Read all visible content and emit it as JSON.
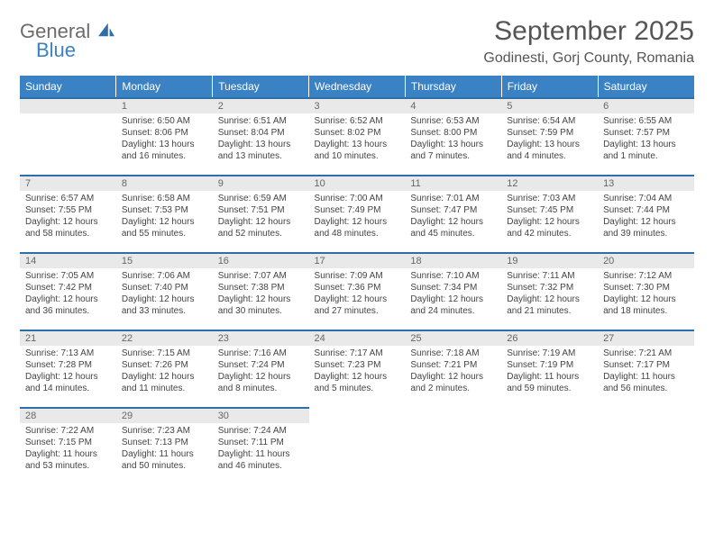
{
  "brand": {
    "general": "General",
    "blue": "Blue"
  },
  "title": "September 2025",
  "location": "Godinesti, Gorj County, Romania",
  "colors": {
    "headerBg": "#3b82c4",
    "headerText": "#ffffff",
    "dayBarBg": "#e9e9e9",
    "dayBarBorder": "#2f6fa8",
    "bodyText": "#444444",
    "titleText": "#555555"
  },
  "dayHeaders": [
    "Sunday",
    "Monday",
    "Tuesday",
    "Wednesday",
    "Thursday",
    "Friday",
    "Saturday"
  ],
  "weeks": [
    [
      {
        "n": "",
        "sr": "",
        "ss": "",
        "dl": ""
      },
      {
        "n": "1",
        "sr": "Sunrise: 6:50 AM",
        "ss": "Sunset: 8:06 PM",
        "dl": "Daylight: 13 hours and 16 minutes."
      },
      {
        "n": "2",
        "sr": "Sunrise: 6:51 AM",
        "ss": "Sunset: 8:04 PM",
        "dl": "Daylight: 13 hours and 13 minutes."
      },
      {
        "n": "3",
        "sr": "Sunrise: 6:52 AM",
        "ss": "Sunset: 8:02 PM",
        "dl": "Daylight: 13 hours and 10 minutes."
      },
      {
        "n": "4",
        "sr": "Sunrise: 6:53 AM",
        "ss": "Sunset: 8:00 PM",
        "dl": "Daylight: 13 hours and 7 minutes."
      },
      {
        "n": "5",
        "sr": "Sunrise: 6:54 AM",
        "ss": "Sunset: 7:59 PM",
        "dl": "Daylight: 13 hours and 4 minutes."
      },
      {
        "n": "6",
        "sr": "Sunrise: 6:55 AM",
        "ss": "Sunset: 7:57 PM",
        "dl": "Daylight: 13 hours and 1 minute."
      }
    ],
    [
      {
        "n": "7",
        "sr": "Sunrise: 6:57 AM",
        "ss": "Sunset: 7:55 PM",
        "dl": "Daylight: 12 hours and 58 minutes."
      },
      {
        "n": "8",
        "sr": "Sunrise: 6:58 AM",
        "ss": "Sunset: 7:53 PM",
        "dl": "Daylight: 12 hours and 55 minutes."
      },
      {
        "n": "9",
        "sr": "Sunrise: 6:59 AM",
        "ss": "Sunset: 7:51 PM",
        "dl": "Daylight: 12 hours and 52 minutes."
      },
      {
        "n": "10",
        "sr": "Sunrise: 7:00 AM",
        "ss": "Sunset: 7:49 PM",
        "dl": "Daylight: 12 hours and 48 minutes."
      },
      {
        "n": "11",
        "sr": "Sunrise: 7:01 AM",
        "ss": "Sunset: 7:47 PM",
        "dl": "Daylight: 12 hours and 45 minutes."
      },
      {
        "n": "12",
        "sr": "Sunrise: 7:03 AM",
        "ss": "Sunset: 7:45 PM",
        "dl": "Daylight: 12 hours and 42 minutes."
      },
      {
        "n": "13",
        "sr": "Sunrise: 7:04 AM",
        "ss": "Sunset: 7:44 PM",
        "dl": "Daylight: 12 hours and 39 minutes."
      }
    ],
    [
      {
        "n": "14",
        "sr": "Sunrise: 7:05 AM",
        "ss": "Sunset: 7:42 PM",
        "dl": "Daylight: 12 hours and 36 minutes."
      },
      {
        "n": "15",
        "sr": "Sunrise: 7:06 AM",
        "ss": "Sunset: 7:40 PM",
        "dl": "Daylight: 12 hours and 33 minutes."
      },
      {
        "n": "16",
        "sr": "Sunrise: 7:07 AM",
        "ss": "Sunset: 7:38 PM",
        "dl": "Daylight: 12 hours and 30 minutes."
      },
      {
        "n": "17",
        "sr": "Sunrise: 7:09 AM",
        "ss": "Sunset: 7:36 PM",
        "dl": "Daylight: 12 hours and 27 minutes."
      },
      {
        "n": "18",
        "sr": "Sunrise: 7:10 AM",
        "ss": "Sunset: 7:34 PM",
        "dl": "Daylight: 12 hours and 24 minutes."
      },
      {
        "n": "19",
        "sr": "Sunrise: 7:11 AM",
        "ss": "Sunset: 7:32 PM",
        "dl": "Daylight: 12 hours and 21 minutes."
      },
      {
        "n": "20",
        "sr": "Sunrise: 7:12 AM",
        "ss": "Sunset: 7:30 PM",
        "dl": "Daylight: 12 hours and 18 minutes."
      }
    ],
    [
      {
        "n": "21",
        "sr": "Sunrise: 7:13 AM",
        "ss": "Sunset: 7:28 PM",
        "dl": "Daylight: 12 hours and 14 minutes."
      },
      {
        "n": "22",
        "sr": "Sunrise: 7:15 AM",
        "ss": "Sunset: 7:26 PM",
        "dl": "Daylight: 12 hours and 11 minutes."
      },
      {
        "n": "23",
        "sr": "Sunrise: 7:16 AM",
        "ss": "Sunset: 7:24 PM",
        "dl": "Daylight: 12 hours and 8 minutes."
      },
      {
        "n": "24",
        "sr": "Sunrise: 7:17 AM",
        "ss": "Sunset: 7:23 PM",
        "dl": "Daylight: 12 hours and 5 minutes."
      },
      {
        "n": "25",
        "sr": "Sunrise: 7:18 AM",
        "ss": "Sunset: 7:21 PM",
        "dl": "Daylight: 12 hours and 2 minutes."
      },
      {
        "n": "26",
        "sr": "Sunrise: 7:19 AM",
        "ss": "Sunset: 7:19 PM",
        "dl": "Daylight: 11 hours and 59 minutes."
      },
      {
        "n": "27",
        "sr": "Sunrise: 7:21 AM",
        "ss": "Sunset: 7:17 PM",
        "dl": "Daylight: 11 hours and 56 minutes."
      }
    ],
    [
      {
        "n": "28",
        "sr": "Sunrise: 7:22 AM",
        "ss": "Sunset: 7:15 PM",
        "dl": "Daylight: 11 hours and 53 minutes."
      },
      {
        "n": "29",
        "sr": "Sunrise: 7:23 AM",
        "ss": "Sunset: 7:13 PM",
        "dl": "Daylight: 11 hours and 50 minutes."
      },
      {
        "n": "30",
        "sr": "Sunrise: 7:24 AM",
        "ss": "Sunset: 7:11 PM",
        "dl": "Daylight: 11 hours and 46 minutes."
      },
      {
        "n": "",
        "sr": "",
        "ss": "",
        "dl": ""
      },
      {
        "n": "",
        "sr": "",
        "ss": "",
        "dl": ""
      },
      {
        "n": "",
        "sr": "",
        "ss": "",
        "dl": ""
      },
      {
        "n": "",
        "sr": "",
        "ss": "",
        "dl": ""
      }
    ]
  ]
}
